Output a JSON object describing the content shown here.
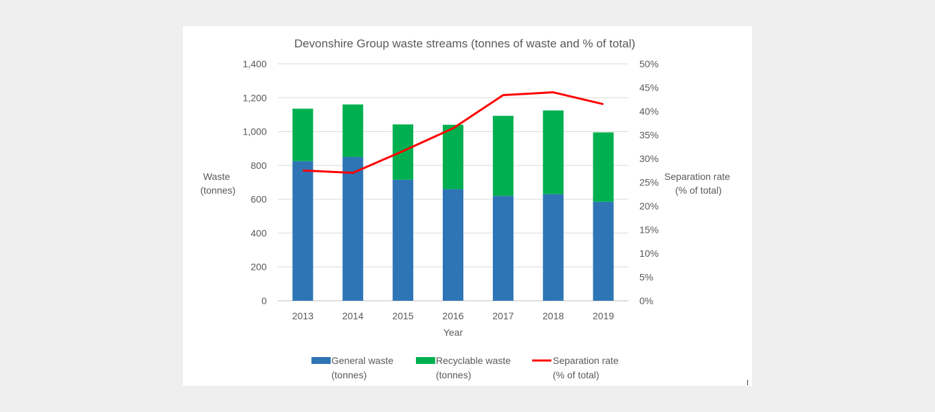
{
  "chart_data": {
    "type": "bar",
    "stacked": true,
    "title": "Devonshire Group waste streams (tonnes of waste and % of total)",
    "xlabel": "Year",
    "ylabel_lines": [
      "Waste",
      "(tonnes)"
    ],
    "y2label_lines": [
      "Separation rate",
      "(% of total)"
    ],
    "categories": [
      "2013",
      "2014",
      "2015",
      "2016",
      "2017",
      "2018",
      "2019"
    ],
    "ylim": [
      0,
      1400
    ],
    "yticks": [
      0,
      200,
      400,
      600,
      800,
      1000,
      1200,
      1400
    ],
    "ytick_labels": [
      "0",
      "200",
      "400",
      "600",
      "800",
      "1,000",
      "1,200",
      "1,400"
    ],
    "y2lim": [
      0,
      50
    ],
    "y2ticks": [
      0,
      5,
      10,
      15,
      20,
      25,
      30,
      35,
      40,
      45,
      50
    ],
    "y2tick_labels": [
      "0%",
      "5%",
      "10%",
      "15%",
      "20%",
      "25%",
      "30%",
      "35%",
      "40%",
      "45%",
      "50%"
    ],
    "grid": true,
    "legend_position": "bottom",
    "series": [
      {
        "name_lines": [
          "General waste",
          "(tonnes)"
        ],
        "kind": "bar",
        "axis": "left",
        "color": "#2e75b6",
        "values": [
          825,
          850,
          715,
          660,
          620,
          630,
          585
        ]
      },
      {
        "name_lines": [
          "Recyclable waste",
          "(tonnes)"
        ],
        "kind": "bar",
        "axis": "left",
        "color": "#00b050",
        "values": [
          310,
          310,
          327,
          380,
          473,
          495,
          410
        ]
      },
      {
        "name_lines": [
          "Separation rate",
          "(% of total)"
        ],
        "kind": "line",
        "axis": "right",
        "color": "#ff0000",
        "values": [
          27.5,
          27.0,
          31.6,
          36.4,
          43.4,
          44.0,
          41.5
        ]
      }
    ]
  }
}
